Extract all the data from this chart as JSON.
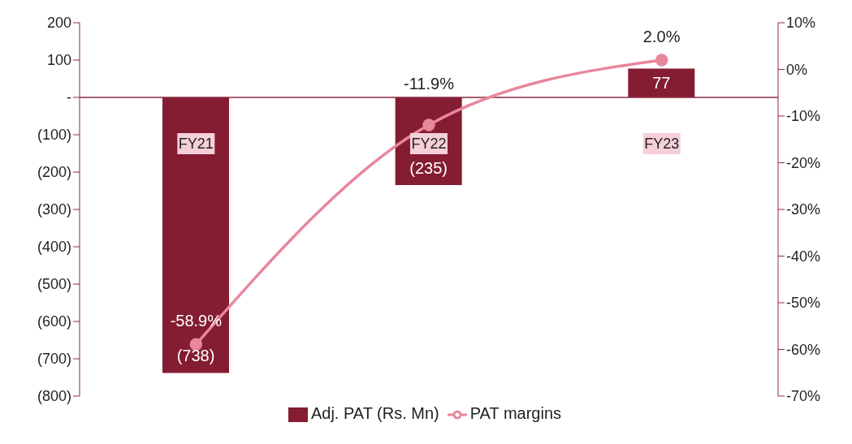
{
  "chart_data": {
    "type": "bar",
    "categories": [
      "FY21",
      "FY22",
      "FY23"
    ],
    "series": [
      {
        "name": "Adj. PAT (Rs. Mn)",
        "type": "bar",
        "color": "#841c32",
        "values": [
          -738,
          -235,
          77
        ],
        "value_labels": [
          "(738)",
          "(235)",
          "77"
        ]
      },
      {
        "name": "PAT margins",
        "type": "line",
        "axis": "y2",
        "color": "#e8879c",
        "values": [
          -58.9,
          -11.9,
          2.0
        ],
        "value_labels": [
          "-58.9%",
          "-11.9%",
          "2.0%"
        ],
        "marker": "circle",
        "line_style": "solid"
      }
    ],
    "ylim": [
      -800,
      200
    ],
    "yticks": [
      {
        "value": -800,
        "label": "(800)"
      },
      {
        "value": -700,
        "label": "(700)"
      },
      {
        "value": -600,
        "label": "(600)"
      },
      {
        "value": -500,
        "label": "(500)"
      },
      {
        "value": -400,
        "label": "(400)"
      },
      {
        "value": -300,
        "label": "(300)"
      },
      {
        "value": -200,
        "label": "(200)"
      },
      {
        "value": -100,
        "label": "(100)"
      },
      {
        "value": 0,
        "label": "-"
      },
      100,
      200
    ],
    "y2lim": [
      -70,
      10
    ],
    "y2ticks": [
      {
        "value": -70,
        "label": "-70%"
      },
      {
        "value": -60,
        "label": "-60%"
      },
      {
        "value": -50,
        "label": "-50%"
      },
      {
        "value": -40,
        "label": "-40%"
      },
      {
        "value": -30,
        "label": "-30%"
      },
      {
        "value": -20,
        "label": "-20%"
      },
      {
        "value": -10,
        "label": "-10%"
      },
      {
        "value": 0,
        "label": "0%"
      },
      {
        "value": 10,
        "label": "10%"
      }
    ],
    "ref_lines": [
      {
        "axis": "y",
        "value": 0,
        "color": "#8b2a45"
      }
    ],
    "grid": false,
    "legend": "bottom"
  }
}
